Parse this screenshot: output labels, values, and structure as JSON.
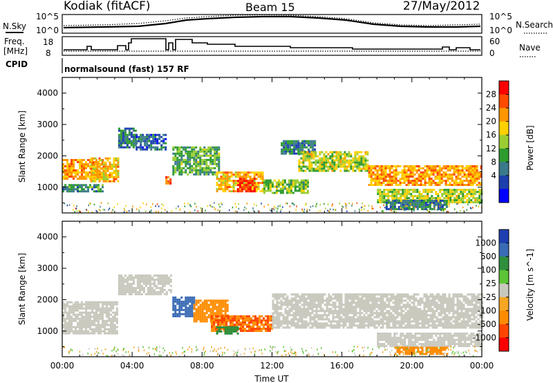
{
  "header": {
    "station": "Kodiak (fitACF)",
    "beam": "Beam 15",
    "date": "27/May/2012"
  },
  "strips": {
    "nsky_label": "N.Sky",
    "nsearch_label": "N.Search",
    "freq_label_1": "Freq.",
    "freq_label_2": "[MHz]",
    "nave_label": "Nave",
    "cpid_label": "CPID",
    "cpid_value": "normalsound (fast) 157 RF",
    "nsky_ticks": [
      "10^5",
      "10^0"
    ],
    "nsearch_ticks": [
      "10^5",
      "10^0"
    ],
    "freq_ticks": [
      "18",
      "8"
    ],
    "nave_ticks": [
      "60",
      "0"
    ]
  },
  "colorbars": {
    "power": {
      "label": "Power [dB]",
      "ticks": [
        "28",
        "24",
        "20",
        "16",
        "12",
        "8",
        "4"
      ],
      "colors": [
        "#ff0000",
        "#ff4a00",
        "#ff9600",
        "#ffd000",
        "#9acd32",
        "#2e9b2e",
        "#3a7a8a",
        "#1c3fae",
        "#0000ff"
      ]
    },
    "velocity": {
      "label": "Velocity [m s^-1]",
      "ticks": [
        "1000",
        "500",
        "100",
        "25",
        "-25",
        "-100",
        "-500",
        "-1000"
      ],
      "colors": [
        "#1e3fb0",
        "#3a6cb5",
        "#2f8f3c",
        "#5cc436",
        "#c8c8bd",
        "#f5a623",
        "#ff8c00",
        "#ff4500",
        "#ff0000"
      ]
    }
  },
  "chart_data": [
    {
      "type": "heatmap",
      "title": "",
      "xlabel": "",
      "ylabel": "Slant Range [km]",
      "xlim": [
        "00:00",
        "24:00"
      ],
      "ylim": [
        180,
        4500
      ],
      "y_ticks": [
        "4000",
        "3000",
        "2000",
        "1000"
      ],
      "quantity": "Power [dB]",
      "regions": [
        {
          "t0": 0.0,
          "t1": 2.3,
          "r0": 1250,
          "r1": 1900,
          "value": 22
        },
        {
          "t0": 0.0,
          "t1": 2.3,
          "r0": 850,
          "r1": 1100,
          "value": 10
        },
        {
          "t0": 1.6,
          "t1": 3.2,
          "r0": 1200,
          "r1": 1950,
          "value": 20
        },
        {
          "t0": 3.2,
          "t1": 4.2,
          "r0": 2300,
          "r1": 2900,
          "value": 8
        },
        {
          "t0": 4.2,
          "t1": 5.9,
          "r0": 2200,
          "r1": 2700,
          "value": 6
        },
        {
          "t0": 5.9,
          "t1": 6.2,
          "r0": 1150,
          "r1": 1350,
          "value": 24
        },
        {
          "t0": 6.3,
          "t1": 9.0,
          "r0": 1400,
          "r1": 2300,
          "value": 12
        },
        {
          "t0": 8.8,
          "t1": 11.5,
          "r0": 850,
          "r1": 1500,
          "value": 20
        },
        {
          "t0": 10.0,
          "t1": 11.0,
          "r0": 900,
          "r1": 1300,
          "value": 28
        },
        {
          "t0": 11.5,
          "t1": 14.0,
          "r0": 800,
          "r1": 1250,
          "value": 14
        },
        {
          "t0": 12.5,
          "t1": 14.5,
          "r0": 2100,
          "r1": 2500,
          "value": 8
        },
        {
          "t0": 13.5,
          "t1": 17.5,
          "r0": 1500,
          "r1": 2150,
          "value": 16
        },
        {
          "t0": 17.5,
          "t1": 24.0,
          "r0": 1100,
          "r1": 1700,
          "value": 22
        },
        {
          "t0": 18.0,
          "t1": 24.0,
          "r0": 550,
          "r1": 950,
          "value": 16
        },
        {
          "t0": 18.5,
          "t1": 22.0,
          "r0": 300,
          "r1": 600,
          "value": 8
        }
      ]
    },
    {
      "type": "heatmap",
      "title": "",
      "xlabel": "Time UT",
      "ylabel": "Slant Range [km]",
      "xlim": [
        "00:00",
        "24:00"
      ],
      "ylim": [
        180,
        4500
      ],
      "x_ticks": [
        "00:00",
        "04:00",
        "08:00",
        "12:00",
        "16:00",
        "20:00",
        "00:00"
      ],
      "y_ticks": [
        "4000",
        "3000",
        "2000",
        "1000"
      ],
      "quantity": "Velocity [m s^-1]",
      "regions": [
        {
          "t0": 0.0,
          "t1": 3.2,
          "r0": 900,
          "r1": 1950,
          "value": 0
        },
        {
          "t0": 3.2,
          "t1": 6.2,
          "r0": 2200,
          "r1": 2800,
          "value": 0
        },
        {
          "t0": 6.3,
          "t1": 7.5,
          "r0": 1500,
          "r1": 2100,
          "value": 300
        },
        {
          "t0": 7.5,
          "t1": 9.5,
          "r0": 1300,
          "r1": 2000,
          "value": -150
        },
        {
          "t0": 8.5,
          "t1": 12.0,
          "r0": 1000,
          "r1": 1500,
          "value": -300
        },
        {
          "t0": 8.8,
          "t1": 10.0,
          "r0": 900,
          "r1": 1150,
          "value": 150
        },
        {
          "t0": 12.0,
          "t1": 24.0,
          "r0": 1100,
          "r1": 2200,
          "value": 0
        },
        {
          "t0": 18.0,
          "t1": 24.0,
          "r0": 550,
          "r1": 950,
          "value": 0
        },
        {
          "t0": 19.0,
          "t1": 22.0,
          "r0": 250,
          "r1": 500,
          "value": -200
        }
      ]
    }
  ]
}
